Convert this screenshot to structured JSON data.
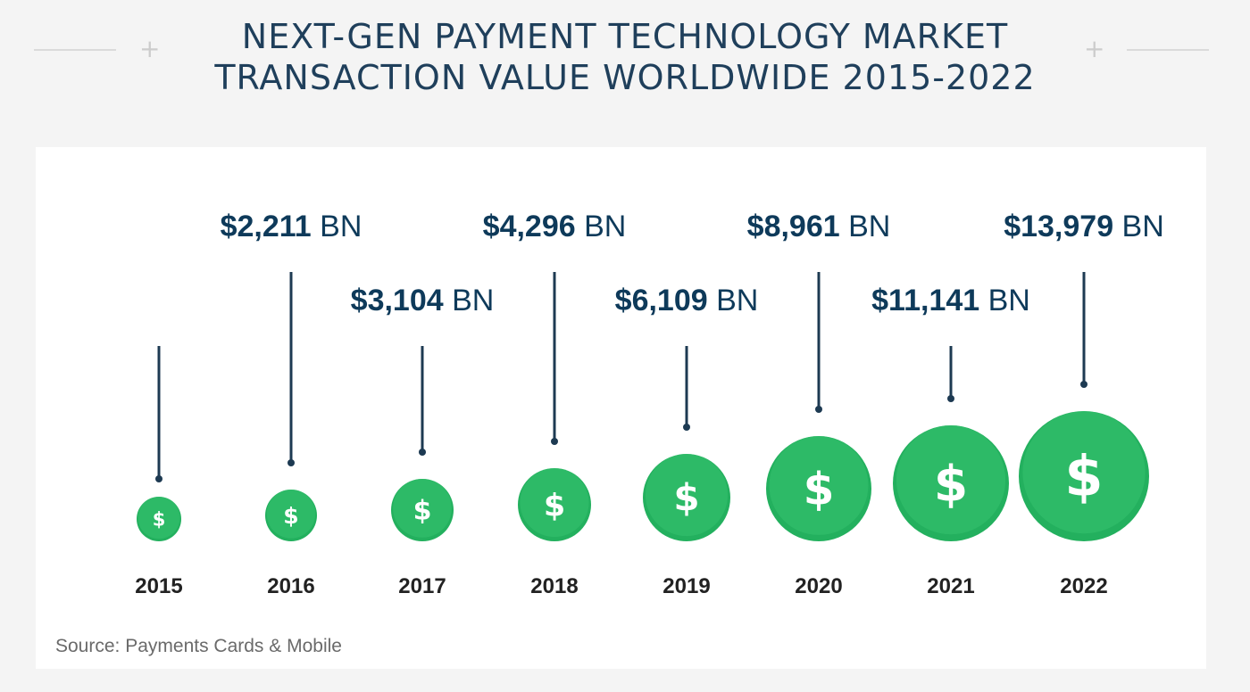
{
  "title": {
    "line1": "NEXT-GEN PAYMENT TECHNOLOGY MARKET",
    "line2": "TRANSACTION VALUE WORLDWIDE 2015-2022"
  },
  "source": "Source: Payments Cards & Mobile",
  "colors": {
    "title": "#1f3f5b",
    "value_text": "#0e3a5a",
    "stem": "#1d3a52",
    "coin": "#23b05e",
    "coin_top": "#37c26f",
    "background": "#f4f4f4",
    "panel": "#ffffff"
  },
  "icons": {
    "marker": "dollar-coin-icon"
  },
  "chart_data": {
    "type": "bar",
    "unit": "BN",
    "categories": [
      "2015",
      "2016",
      "2017",
      "2018",
      "2019",
      "2020",
      "2021",
      "2022"
    ],
    "values": [
      null,
      2211,
      3104,
      4296,
      6109,
      8961,
      11141,
      13979
    ],
    "value_labels": [
      "",
      "$2,211",
      "$3,104",
      "$4,296",
      "$6,109",
      "$8,961",
      "$11,141",
      "$13,979"
    ],
    "grid": false,
    "legend": "none"
  }
}
